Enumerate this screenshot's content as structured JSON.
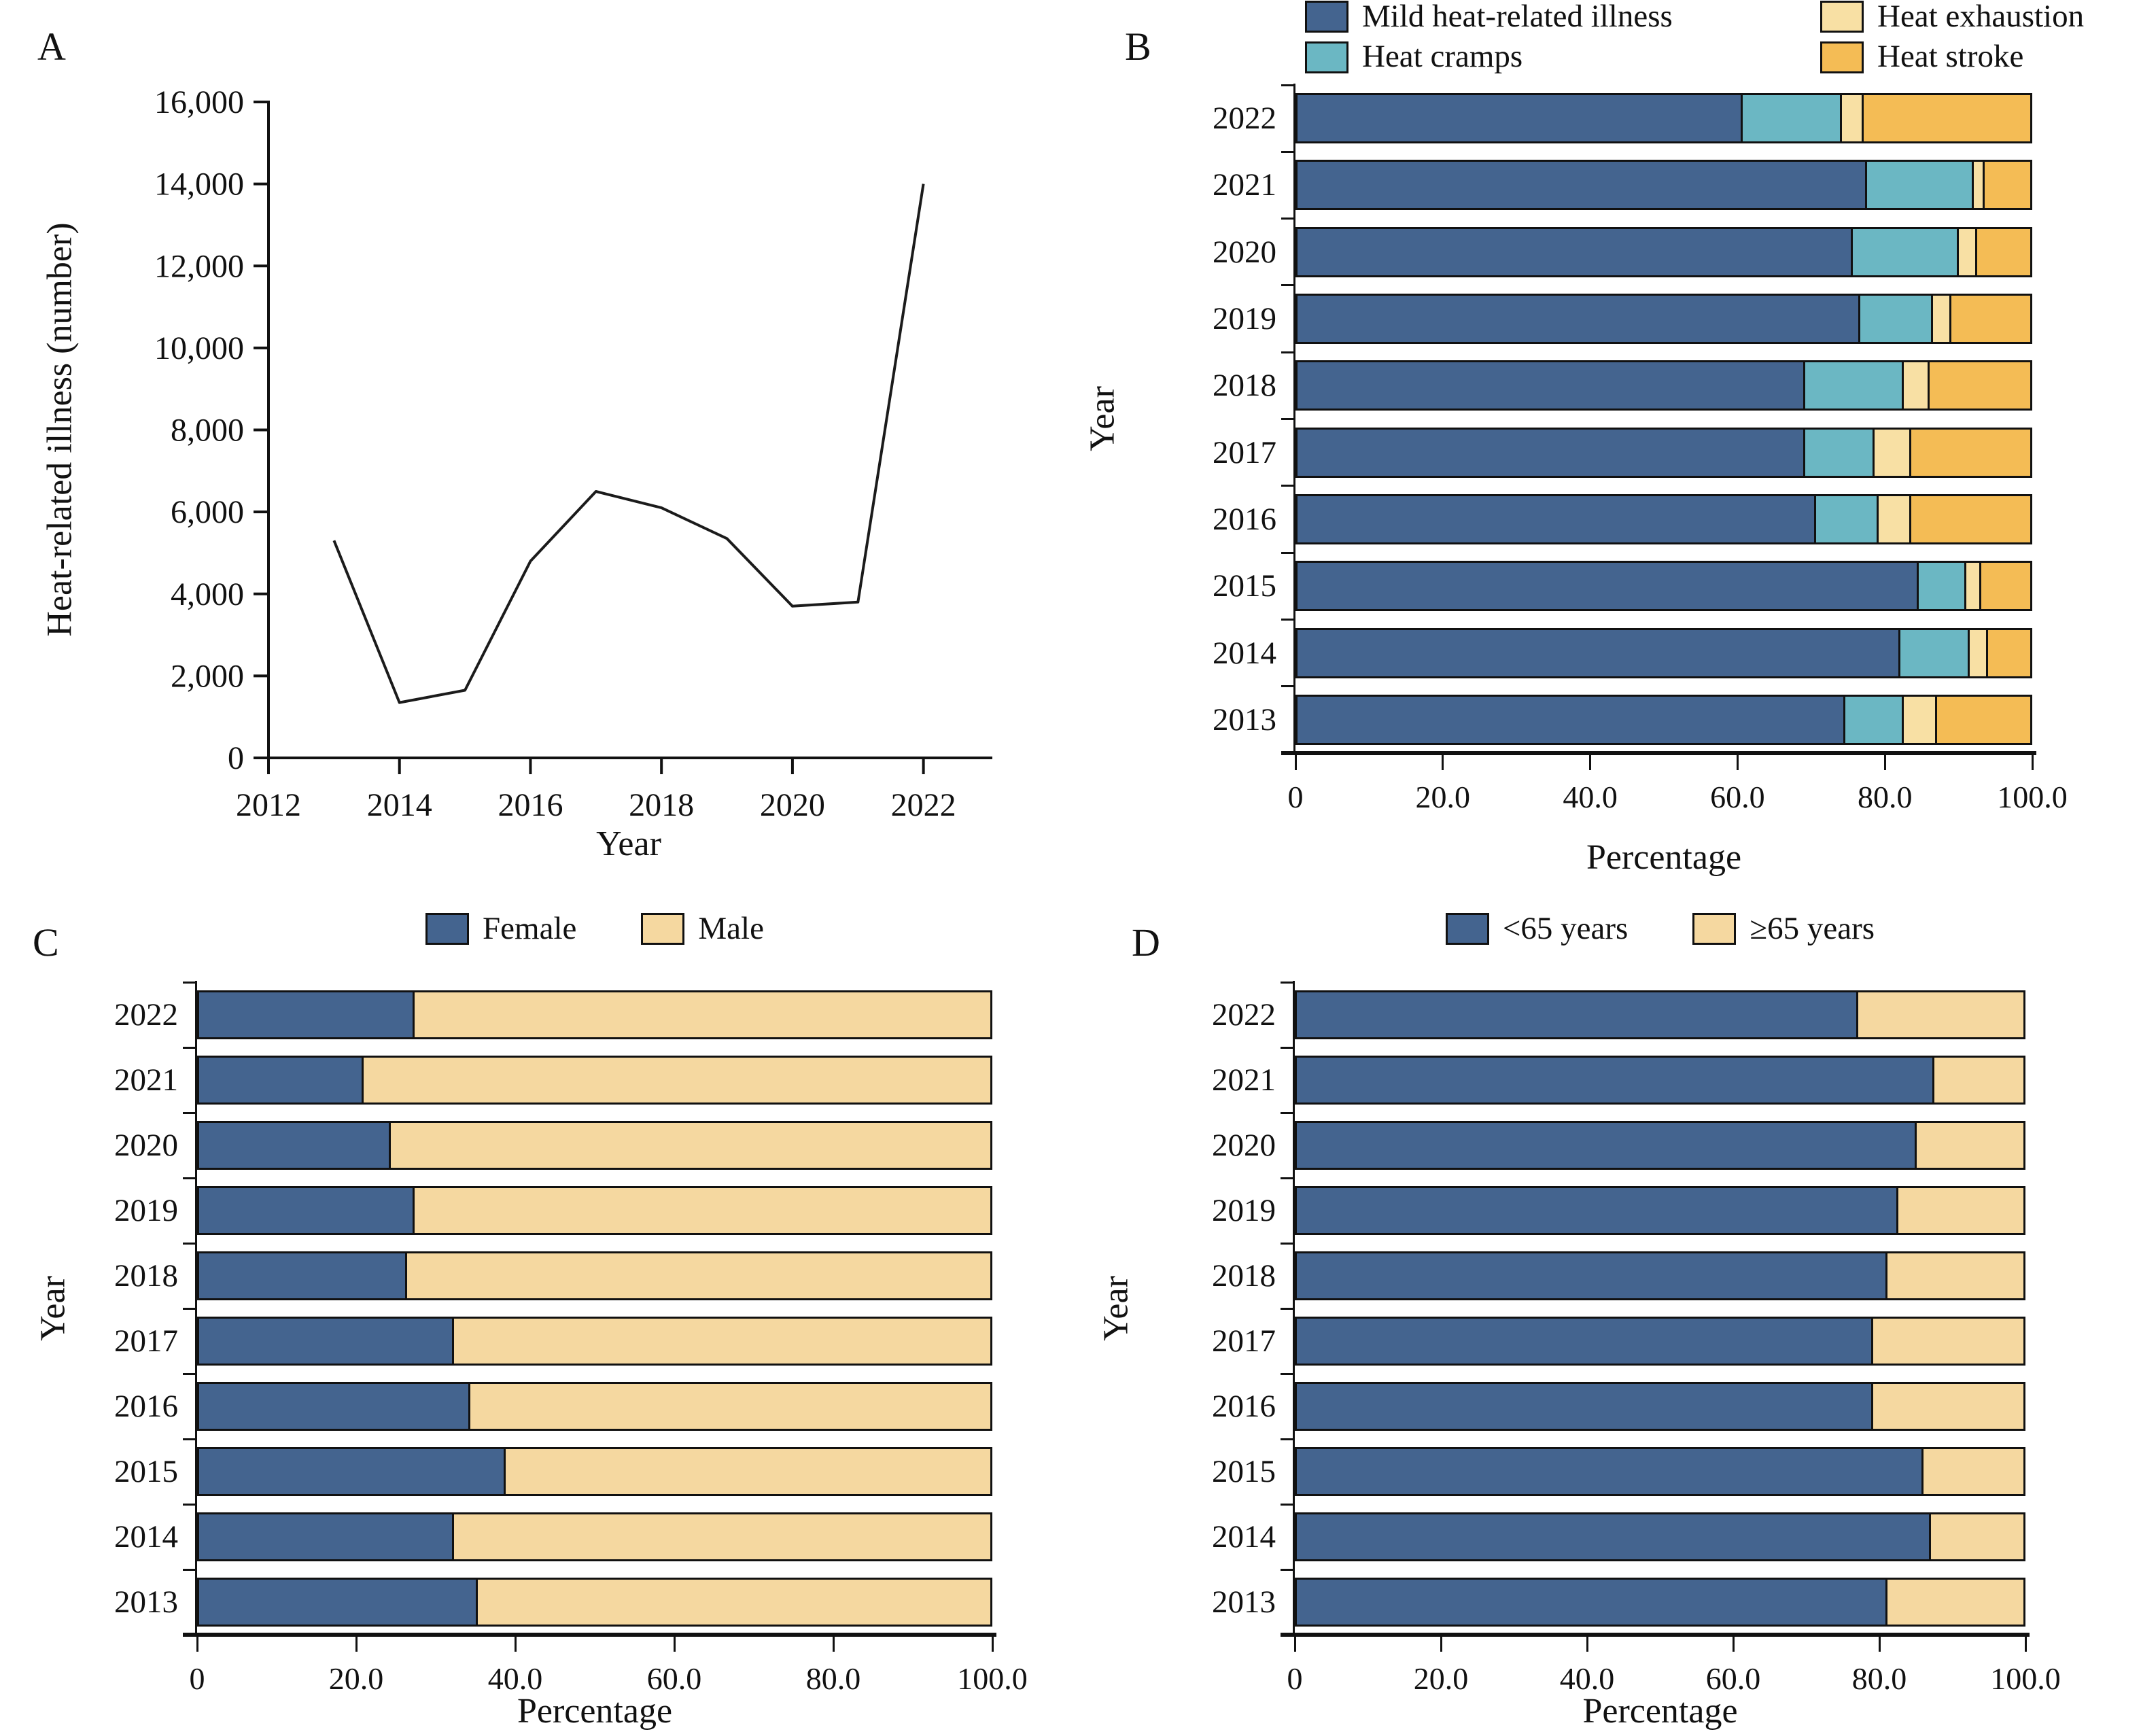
{
  "colors": {
    "line": "#1b1b1b",
    "axis": "#111111",
    "dark_blue": "#44648F",
    "teal": "#6BB7C3",
    "light_yellow": "#F8E0A4",
    "orange": "#F4BC55",
    "cream": "#F5D8A0"
  },
  "panels": {
    "a": {
      "letter": "A"
    },
    "b": {
      "letter": "B"
    },
    "c": {
      "letter": "C"
    },
    "d": {
      "letter": "D"
    }
  },
  "chart_data": [
    {
      "panel": "A",
      "type": "line",
      "xlabel": "Year",
      "ylabel": "Heat-related illness (number)",
      "x": [
        2013,
        2014,
        2015,
        2016,
        2017,
        2018,
        2019,
        2020,
        2021,
        2022
      ],
      "values": [
        5300,
        1350,
        1650,
        4800,
        6500,
        6100,
        5350,
        3700,
        3800,
        14000
      ],
      "xlim": [
        2012,
        2023
      ],
      "ylim": [
        0,
        16000
      ],
      "xtick_values": [
        2012,
        2014,
        2016,
        2018,
        2020,
        2022
      ],
      "xtick_labels": [
        "2012",
        "2014",
        "2016",
        "2018",
        "2020",
        "2022"
      ],
      "ytick_values": [
        0,
        2000,
        4000,
        6000,
        8000,
        10000,
        12000,
        14000,
        16000
      ],
      "ytick_labels": [
        "0",
        "2,000",
        "4,000",
        "6,000",
        "8,000",
        "10,000",
        "12,000",
        "14,000",
        "16,000"
      ],
      "line_color": "#1b1b1b",
      "grid": false
    },
    {
      "panel": "B",
      "type": "stacked-bar-horizontal",
      "xlabel": "Percentage",
      "ylabel": "Year",
      "xlim": [
        0,
        100
      ],
      "xtick_labels": [
        "0",
        "20.0",
        "40.0",
        "60.0",
        "80.0",
        "100.0"
      ],
      "categories": [
        "2022",
        "2021",
        "2020",
        "2019",
        "2018",
        "2017",
        "2016",
        "2015",
        "2014",
        "2013"
      ],
      "legend_position": "top",
      "series": [
        {
          "name": "Mild heat-related illness",
          "color": "#44648F",
          "values": [
            60.5,
            77.5,
            75.5,
            76.5,
            69.0,
            69.0,
            70.5,
            84.5,
            82.0,
            74.5
          ]
        },
        {
          "name": "Heat cramps",
          "color": "#6BB7C3",
          "values": [
            13.5,
            14.5,
            14.5,
            10.0,
            13.5,
            9.5,
            8.5,
            6.5,
            9.5,
            8.0
          ]
        },
        {
          "name": "Heat exhaustion",
          "color": "#F8E0A4",
          "values": [
            3.0,
            1.5,
            2.5,
            2.5,
            3.5,
            5.0,
            4.5,
            2.0,
            2.5,
            4.5
          ]
        },
        {
          "name": "Heat stroke",
          "color": "#F4BC55",
          "values": [
            23.0,
            6.5,
            7.5,
            11.0,
            14.0,
            16.5,
            16.5,
            7.0,
            6.0,
            13.0
          ]
        }
      ]
    },
    {
      "panel": "C",
      "type": "stacked-bar-horizontal",
      "xlabel": "Percentage",
      "ylabel": "Year",
      "xlim": [
        0,
        100
      ],
      "xtick_labels": [
        "0",
        "20.0",
        "40.0",
        "60.0",
        "80.0",
        "100.0"
      ],
      "categories": [
        "2022",
        "2021",
        "2020",
        "2019",
        "2018",
        "2017",
        "2016",
        "2015",
        "2014",
        "2013"
      ],
      "legend_position": "top",
      "series": [
        {
          "name": "Female",
          "color": "#44648F",
          "values": [
            27.0,
            20.5,
            24.0,
            27.0,
            26.0,
            32.0,
            34.0,
            38.5,
            32.0,
            35.0
          ]
        },
        {
          "name": "Male",
          "color": "#F5D8A0",
          "values": [
            73.0,
            79.5,
            76.0,
            73.0,
            74.0,
            68.0,
            66.0,
            61.5,
            68.0,
            65.0
          ]
        }
      ]
    },
    {
      "panel": "D",
      "type": "stacked-bar-horizontal",
      "xlabel": "Percentage",
      "ylabel": "Year",
      "xlim": [
        0,
        100
      ],
      "xtick_labels": [
        "0",
        "20.0",
        "40.0",
        "60.0",
        "80.0",
        "100.0"
      ],
      "categories": [
        "2022",
        "2021",
        "2020",
        "2019",
        "2018",
        "2017",
        "2016",
        "2015",
        "2014",
        "2013"
      ],
      "legend_position": "top",
      "series": [
        {
          "name": "<65 years",
          "color": "#44648F",
          "values": [
            77.0,
            87.5,
            85.0,
            82.5,
            81.0,
            79.0,
            79.0,
            86.0,
            87.0,
            81.0
          ]
        },
        {
          "name": "≥65 years",
          "color": "#F5D8A0",
          "values": [
            23.0,
            12.5,
            15.0,
            17.5,
            19.0,
            21.0,
            21.0,
            14.0,
            13.0,
            19.0
          ]
        }
      ]
    }
  ]
}
